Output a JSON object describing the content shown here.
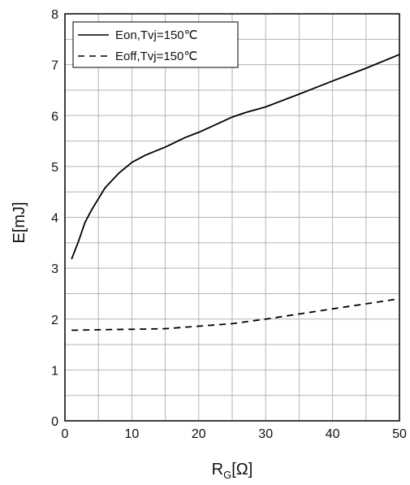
{
  "chart_data": {
    "type": "line",
    "xlabel": "R",
    "xlabel_sub": "G",
    "xlabel_suffix": "[Ω]",
    "ylabel": "E[mJ]",
    "xlim": [
      0,
      50
    ],
    "ylim": [
      0,
      8
    ],
    "x_major_ticks": [
      "0",
      "10",
      "20",
      "30",
      "40",
      "50"
    ],
    "y_major_ticks": [
      "0",
      "1",
      "2",
      "3",
      "4",
      "5",
      "6",
      "7",
      "8"
    ],
    "grid": true,
    "legend_position": "top-left",
    "series": [
      {
        "name": "Eon,Tvj=150℃",
        "style": "solid",
        "x": [
          1,
          2,
          3,
          4,
          6,
          8,
          10,
          12,
          15,
          18,
          20,
          22,
          25,
          27,
          30,
          35,
          40,
          45,
          50
        ],
        "y": [
          3.18,
          3.52,
          3.9,
          4.15,
          4.58,
          4.86,
          5.08,
          5.22,
          5.38,
          5.57,
          5.67,
          5.79,
          5.97,
          6.06,
          6.17,
          6.42,
          6.68,
          6.93,
          7.2
        ]
      },
      {
        "name": "Eoff,Tvj=150℃",
        "style": "dashed",
        "x": [
          1,
          5,
          10,
          15,
          20,
          25,
          30,
          35,
          40,
          45,
          50
        ],
        "y": [
          1.78,
          1.79,
          1.8,
          1.81,
          1.86,
          1.91,
          2.0,
          2.1,
          2.2,
          2.3,
          2.4
        ]
      }
    ]
  }
}
